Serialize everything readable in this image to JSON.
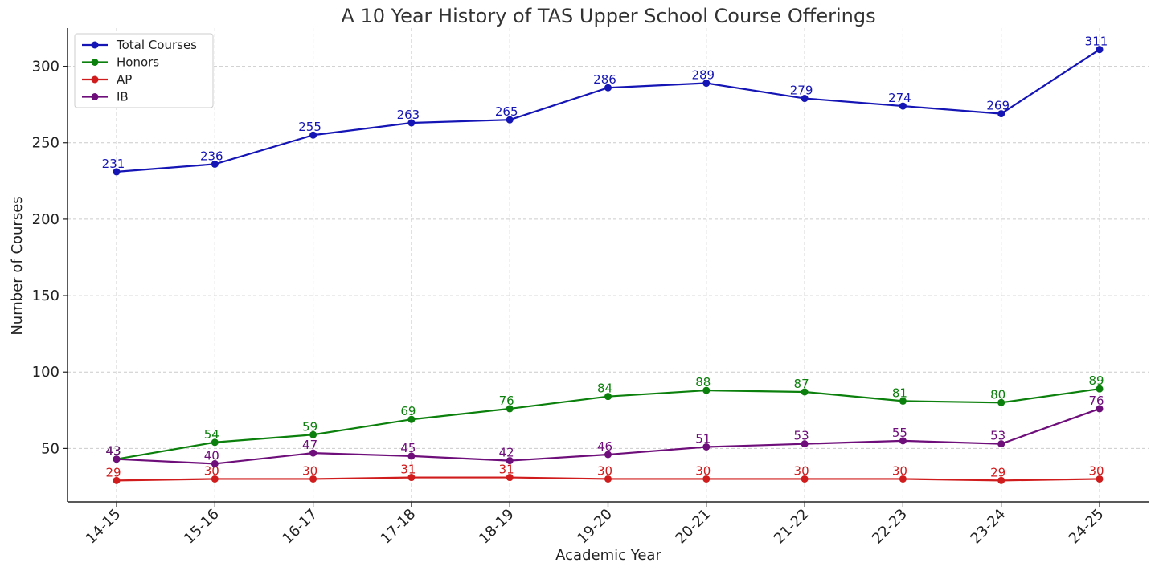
{
  "chart_data": {
    "type": "line",
    "title": "A 10 Year History of TAS Upper School Course Offerings",
    "xlabel": "Academic Year",
    "ylabel": "Number of Courses",
    "categories": [
      "14-15",
      "15-16",
      "16-17",
      "17-18",
      "18-19",
      "19-20",
      "20-21",
      "21-22",
      "22-23",
      "23-24",
      "24-25"
    ],
    "ylim": [
      15,
      325
    ],
    "yticks": [
      50,
      100,
      150,
      200,
      250,
      300
    ],
    "grid": true,
    "legend_position": "top-left",
    "series": [
      {
        "name": "Total Courses",
        "color": "#1515b5",
        "values": [
          231,
          236,
          255,
          263,
          265,
          286,
          289,
          279,
          274,
          269,
          311
        ]
      },
      {
        "name": "Honors",
        "color": "#0c800c",
        "values": [
          43,
          54,
          59,
          69,
          76,
          84,
          88,
          87,
          81,
          80,
          89
        ]
      },
      {
        "name": "AP",
        "color": "#d01c1c",
        "values": [
          29,
          30,
          30,
          31,
          31,
          30,
          30,
          30,
          30,
          29,
          30
        ]
      },
      {
        "name": "IB",
        "color": "#6e0e7a",
        "values": [
          43,
          40,
          47,
          45,
          42,
          46,
          51,
          53,
          55,
          53,
          76
        ]
      }
    ]
  }
}
